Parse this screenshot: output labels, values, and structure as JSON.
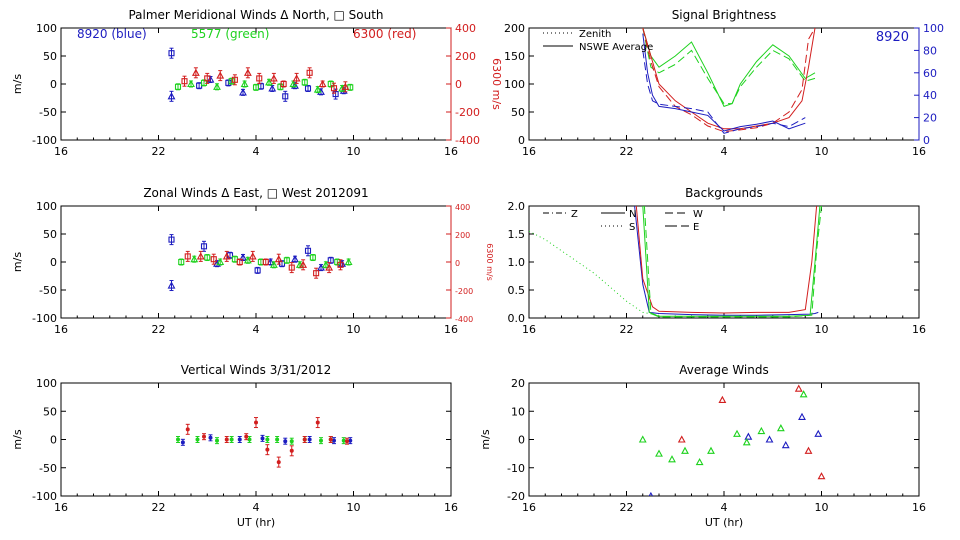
{
  "figure": {
    "xlabel": "UT (hr)"
  },
  "chart_data": [
    {
      "id": "meridional",
      "type": "scatter",
      "title": "Palmer Meridional Winds Δ North, □ South",
      "ylabel": "m/s",
      "y2label": "6300 m/s",
      "xlim": [
        16,
        40
      ],
      "ylim": [
        -100,
        100
      ],
      "y2lim": [
        -400,
        400
      ],
      "xticks": [
        16,
        22,
        28,
        34,
        40
      ],
      "xticklabels": [
        "16",
        "22",
        "4",
        "10",
        "16"
      ],
      "yticks": [
        -100,
        -50,
        0,
        50,
        100
      ],
      "y2ticks": [
        -400,
        -200,
        0,
        200,
        400
      ],
      "legend_labels": [
        {
          "text": "8920 (blue)",
          "color": "#1c1cc0"
        },
        {
          "text": "5577 (green)",
          "color": "#1ed21e"
        },
        {
          "text": "6300 (red)",
          "color": "#d21e1e"
        }
      ],
      "series": [
        {
          "name": "8920",
          "color": "#1c1cc0",
          "axis": "left",
          "x": [
            22.8,
            22.8,
            24.5,
            25.2,
            26.3,
            27.2,
            28.3,
            29.0,
            29.8,
            30.4,
            31.2,
            32.0,
            32.9,
            33.4
          ],
          "y": [
            55,
            -22,
            -3,
            8,
            2,
            -15,
            -4,
            -8,
            -22,
            -3,
            -8,
            -14,
            -18,
            -12
          ]
        },
        {
          "name": "5577",
          "color": "#1ed21e",
          "axis": "left",
          "x": [
            23.2,
            24.0,
            24.8,
            25.6,
            26.5,
            27.3,
            28.0,
            28.8,
            29.5,
            30.3,
            31.0,
            31.8,
            32.6,
            33.3,
            33.8
          ],
          "y": [
            -5,
            0,
            2,
            -5,
            5,
            0,
            -6,
            3,
            -5,
            0,
            3,
            -10,
            0,
            -8,
            -6
          ]
        },
        {
          "name": "6300",
          "color": "#d21e1e",
          "axis": "right",
          "x": [
            23.6,
            24.3,
            25.0,
            25.8,
            26.7,
            27.5,
            28.2,
            29.1,
            29.7,
            30.5,
            31.3,
            32.1,
            32.8,
            33.5
          ],
          "y": [
            20,
            80,
            40,
            60,
            30,
            80,
            40,
            40,
            0,
            40,
            80,
            0,
            -30,
            -20
          ]
        }
      ]
    },
    {
      "id": "zonal",
      "type": "scatter",
      "title": "Zonal Winds Δ East, □ West 2012091",
      "ylabel": "m/s",
      "y2label": "6300 m/s",
      "xlim": [
        16,
        40
      ],
      "ylim": [
        -100,
        100
      ],
      "y2lim": [
        -400,
        400
      ],
      "xticks": [
        16,
        22,
        28,
        34,
        40
      ],
      "xticklabels": [
        "16",
        "22",
        "4",
        "10",
        "16"
      ],
      "yticks": [
        -100,
        -50,
        0,
        50,
        100
      ],
      "y2ticks": [
        -400,
        -200,
        0,
        200,
        400
      ],
      "series": [
        {
          "name": "8920",
          "color": "#1c1cc0",
          "axis": "left",
          "x": [
            22.8,
            22.8,
            24.8,
            25.6,
            26.4,
            27.2,
            28.1,
            28.9,
            29.6,
            30.4,
            31.2,
            32.0,
            32.6,
            33.3
          ],
          "y": [
            40,
            -42,
            28,
            -3,
            12,
            8,
            -15,
            0,
            -3,
            5,
            20,
            -10,
            3,
            -3
          ]
        },
        {
          "name": "5577",
          "color": "#1ed21e",
          "axis": "left",
          "x": [
            23.4,
            24.2,
            25.0,
            25.8,
            26.7,
            27.5,
            28.3,
            29.1,
            29.9,
            30.7,
            31.5,
            32.3,
            33.0,
            33.7
          ],
          "y": [
            0,
            5,
            8,
            0,
            5,
            3,
            0,
            -5,
            3,
            -5,
            8,
            -5,
            0,
            0
          ]
        },
        {
          "name": "6300",
          "color": "#d21e1e",
          "axis": "right",
          "x": [
            23.8,
            24.6,
            25.4,
            26.2,
            27.0,
            27.8,
            28.6,
            29.4,
            30.2,
            30.9,
            31.7,
            32.5,
            33.2
          ],
          "y": [
            40,
            40,
            20,
            40,
            0,
            40,
            0,
            20,
            -40,
            -20,
            -80,
            -40,
            -20
          ]
        }
      ]
    },
    {
      "id": "vertical",
      "type": "scatter",
      "title": "Vertical Winds 3/31/2012",
      "ylabel": "m/s",
      "xlabel": "UT (hr)",
      "xlim": [
        16,
        40
      ],
      "ylim": [
        -100,
        100
      ],
      "xticks": [
        16,
        22,
        28,
        34,
        40
      ],
      "xticklabels": [
        "16",
        "22",
        "4",
        "10",
        "16"
      ],
      "yticks": [
        -100,
        -50,
        0,
        50,
        100
      ],
      "series": [
        {
          "name": "8920",
          "color": "#1c1cc0",
          "axis": "left",
          "x": [
            23.5,
            25.2,
            27.0,
            28.4,
            29.8,
            31.3,
            32.8,
            33.8
          ],
          "y": [
            -5,
            3,
            0,
            2,
            -3,
            0,
            -2,
            -2
          ]
        },
        {
          "name": "5577",
          "color": "#1ed21e",
          "axis": "left",
          "x": [
            23.2,
            24.4,
            25.6,
            26.5,
            27.6,
            28.7,
            29.3,
            30.2,
            31.0,
            32.0,
            32.6,
            33.4
          ],
          "y": [
            0,
            0,
            -2,
            0,
            0,
            0,
            0,
            -3,
            0,
            -2,
            0,
            -2
          ]
        },
        {
          "name": "6300",
          "color": "#d21e1e",
          "axis": "left",
          "x": [
            23.8,
            24.8,
            26.2,
            27.4,
            28.0,
            28.7,
            29.4,
            30.2,
            31.0,
            31.8,
            32.6,
            33.6
          ],
          "y": [
            18,
            5,
            0,
            5,
            30,
            -18,
            -40,
            -20,
            0,
            30,
            0,
            -3
          ]
        }
      ]
    },
    {
      "id": "brightness",
      "type": "line",
      "title": "Signal Brightness",
      "xlim": [
        16,
        40
      ],
      "ylim": [
        0,
        200
      ],
      "y2lim": [
        0,
        100
      ],
      "xticks": [
        16,
        22,
        28,
        34,
        40
      ],
      "xticklabels": [
        "16",
        "22",
        "4",
        "10",
        "16"
      ],
      "yticks": [
        0,
        50,
        100,
        150,
        200
      ],
      "y2ticks": [
        0,
        20,
        40,
        60,
        80,
        100
      ],
      "y2color": "#1c1cc0",
      "legend": [
        {
          "label": "Zenith",
          "dash": "1 3"
        },
        {
          "label": "NSWE Average",
          "dash": ""
        }
      ],
      "corner_label": {
        "text": "8920",
        "color": "#1c1cc0"
      },
      "series": [
        {
          "name": "5577",
          "color": "#1ed21e",
          "dash": "",
          "axis": "left",
          "x": [
            23.0,
            23.5,
            24.0,
            25.0,
            26.0,
            27.0,
            28.0,
            28.5,
            29.0,
            30.0,
            31.0,
            32.0,
            33.0,
            33.6
          ],
          "y": [
            200,
            150,
            130,
            150,
            175,
            120,
            60,
            65,
            100,
            140,
            170,
            150,
            110,
            120
          ]
        },
        {
          "name": "5577",
          "color": "#1ed21e",
          "dash": "8 4",
          "axis": "left",
          "x": [
            23.0,
            23.5,
            24.0,
            25.0,
            26.0,
            27.0,
            28.0,
            28.5,
            29.0,
            30.0,
            31.0,
            32.0,
            33.0,
            33.6
          ],
          "y": [
            200,
            130,
            120,
            135,
            160,
            110,
            65,
            65,
            95,
            130,
            160,
            145,
            105,
            110
          ]
        },
        {
          "name": "6300",
          "color": "#d21e1e",
          "dash": "",
          "axis": "left",
          "x": [
            23.0,
            23.5,
            24.0,
            25.0,
            26.0,
            27.0,
            28.0,
            29.0,
            30.0,
            31.0,
            32.0,
            32.8,
            33.2,
            33.6
          ],
          "y": [
            200,
            150,
            100,
            70,
            50,
            30,
            20,
            20,
            25,
            30,
            40,
            70,
            130,
            200
          ]
        },
        {
          "name": "6300",
          "color": "#d21e1e",
          "dash": "8 4",
          "axis": "left",
          "x": [
            23.0,
            23.5,
            24.0,
            25.0,
            26.0,
            27.0,
            28.0,
            29.0,
            30.0,
            31.0,
            32.0,
            32.8,
            33.2,
            33.6
          ],
          "y": [
            200,
            140,
            95,
            60,
            45,
            25,
            15,
            18,
            22,
            30,
            50,
            90,
            180,
            200
          ]
        },
        {
          "name": "8920",
          "color": "#1c1cc0",
          "dash": "",
          "axis": "right",
          "x": [
            23.0,
            23.3,
            23.6,
            24.0,
            25.0,
            26.0,
            27.0,
            28.0,
            29.0,
            30.0,
            31.0,
            32.0,
            33.0
          ],
          "y": [
            95,
            60,
            40,
            30,
            28,
            25,
            22,
            8,
            12,
            14,
            17,
            10,
            15
          ]
        },
        {
          "name": "8920",
          "color": "#1c1cc0",
          "dash": "8 4",
          "axis": "right",
          "x": [
            23.0,
            23.3,
            23.6,
            24.0,
            25.0,
            26.0,
            27.0,
            28.0,
            29.0,
            30.0,
            31.0,
            32.0,
            33.0
          ],
          "y": [
            80,
            50,
            35,
            32,
            30,
            28,
            25,
            6,
            10,
            12,
            15,
            12,
            20
          ]
        }
      ]
    },
    {
      "id": "backgrounds",
      "type": "line",
      "title": "Backgrounds",
      "xlim": [
        16,
        40
      ],
      "ylim": [
        0,
        2.0
      ],
      "xticks": [
        16,
        22,
        28,
        34,
        40
      ],
      "xticklabels": [
        "16",
        "22",
        "4",
        "10",
        "16"
      ],
      "yticks": [
        0,
        0.5,
        1.0,
        1.5,
        2.0
      ],
      "yticklabels": [
        "0.0",
        "0.5",
        "1.0",
        "1.5",
        "2.0"
      ],
      "legend": [
        {
          "label": "Z",
          "dash": "6 3 1 3"
        },
        {
          "label": "N",
          "dash": ""
        },
        {
          "label": "W",
          "dash": "8 4"
        },
        {
          "label": "S",
          "dash": "1 3"
        },
        {
          "label": "E",
          "dash": "12 4"
        }
      ],
      "series": [
        {
          "name": "5577",
          "color": "#1ed21e",
          "dash": "1 3",
          "x": [
            16.0,
            17.0,
            18.0,
            19.0,
            20.0,
            21.0,
            22.0,
            23.0,
            24.0
          ],
          "y": [
            1.55,
            1.4,
            1.2,
            1.0,
            0.8,
            0.55,
            0.3,
            0.1,
            0.05
          ]
        },
        {
          "name": "8920",
          "color": "#1c1cc0",
          "dash": "",
          "x": [
            22.5,
            23.0,
            23.4,
            24.0,
            26.0,
            28.0,
            30.0,
            32.0,
            33.3,
            33.6,
            33.8
          ],
          "y": [
            2.0,
            0.6,
            0.1,
            0.08,
            0.06,
            0.05,
            0.05,
            0.06,
            0.07,
            0.08,
            0.1
          ]
        },
        {
          "name": "6300",
          "color": "#d21e1e",
          "dash": "",
          "x": [
            22.6,
            23.0,
            23.6,
            24.0,
            26.0,
            28.0,
            30.0,
            32.0,
            33.0,
            33.4,
            33.7
          ],
          "y": [
            2.0,
            0.7,
            0.2,
            0.12,
            0.1,
            0.09,
            0.1,
            0.1,
            0.15,
            1.0,
            2.0
          ]
        },
        {
          "name": "5577",
          "color": "#1ed21e",
          "dash": "",
          "x": [
            23.0,
            23.4,
            24.0,
            26.0,
            28.0,
            30.0,
            32.0,
            33.3,
            33.6,
            33.9
          ],
          "y": [
            2.0,
            0.1,
            0.03,
            0.03,
            0.03,
            0.03,
            0.03,
            0.05,
            1.0,
            2.0
          ]
        },
        {
          "name": "5577",
          "color": "#1ed21e",
          "dash": "8 4",
          "x": [
            23.1,
            23.5,
            24.0,
            26.0,
            28.0,
            30.0,
            32.0,
            33.4,
            33.7,
            34.0
          ],
          "y": [
            2.0,
            0.08,
            0.02,
            0.02,
            0.02,
            0.02,
            0.02,
            0.05,
            1.2,
            2.0
          ]
        }
      ]
    },
    {
      "id": "average",
      "type": "scatter",
      "title": "Average Winds",
      "ylabel": "m/s",
      "xlabel": "UT (hr)",
      "xlim": [
        16,
        40
      ],
      "ylim": [
        -20,
        20
      ],
      "xticks": [
        16,
        22,
        28,
        34,
        40
      ],
      "xticklabels": [
        "16",
        "22",
        "4",
        "10",
        "16"
      ],
      "yticks": [
        -20,
        -10,
        0,
        10,
        20
      ],
      "series": [
        {
          "name": "8920",
          "color": "#1c1cc0",
          "x": [
            23.5,
            29.5,
            30.8,
            31.8,
            32.8,
            33.8
          ],
          "y": [
            -20,
            1,
            0,
            -2,
            8,
            2
          ]
        },
        {
          "name": "5577",
          "color": "#1ed21e",
          "x": [
            23.0,
            24.0,
            24.8,
            25.6,
            26.5,
            27.2,
            28.8,
            29.4,
            30.3,
            31.5,
            32.9
          ],
          "y": [
            0,
            -5,
            -7,
            -4,
            -8,
            -4,
            2,
            -1,
            3,
            4,
            16
          ]
        },
        {
          "name": "6300",
          "color": "#d21e1e",
          "x": [
            25.4,
            27.9,
            32.6,
            33.2,
            34.0
          ],
          "y": [
            0,
            14,
            18,
            -4,
            -13
          ]
        }
      ]
    }
  ]
}
